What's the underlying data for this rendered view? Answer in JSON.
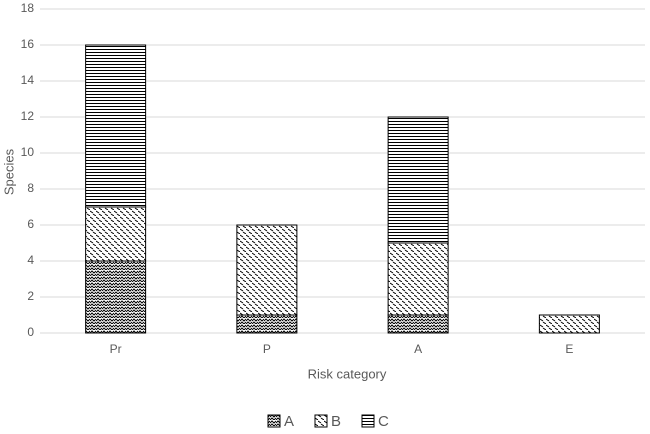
{
  "chart_data": {
    "type": "stacked_bar",
    "x_label": "Risk category",
    "y_label": "Species",
    "categories": [
      "Pr",
      "P",
      "A",
      "E"
    ],
    "series": [
      {
        "name": "A",
        "color": "#000000",
        "values": [
          4,
          1,
          1,
          0
        ]
      },
      {
        "name": "B",
        "color": "#000000",
        "values": [
          3,
          5,
          4,
          1
        ]
      },
      {
        "name": "C",
        "color": "#000000",
        "values": [
          9,
          0,
          7,
          0
        ]
      }
    ],
    "ylim": [
      0,
      18
    ],
    "yticks": [
      0,
      2,
      4,
      6,
      8,
      10,
      12,
      14,
      16,
      18
    ],
    "grid": true,
    "legend": "bottom"
  }
}
